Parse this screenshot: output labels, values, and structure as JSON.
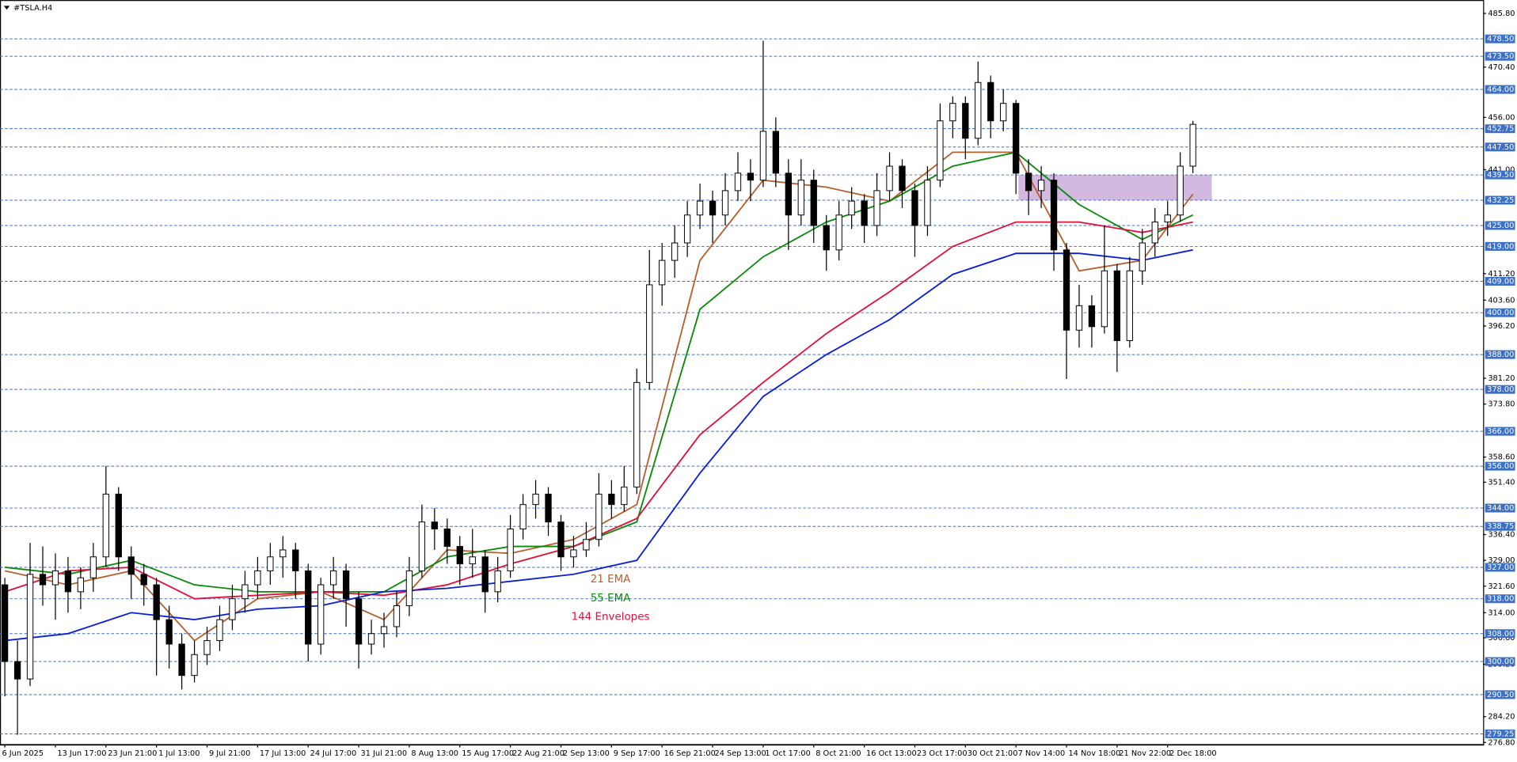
{
  "chart_data": {
    "type": "candlestick",
    "title": "#TSLA.H4",
    "categories": [
      "6 Jun 2025",
      null,
      null,
      null,
      "13 Jun 17:00",
      null,
      null,
      null,
      "23 Jun 21:00",
      null,
      null,
      null,
      "1 Jul 13:00",
      null,
      null,
      null,
      "9 Jul 21:00",
      null,
      null,
      null,
      "17 Jul 13:00",
      null,
      null,
      null,
      "24 Jul 17:00",
      null,
      null,
      null,
      "31 Jul 21:00",
      null,
      null,
      null,
      "8 Aug 13:00",
      null,
      null,
      null,
      "15 Aug 17:00",
      null,
      null,
      null,
      "22 Aug 21:00",
      null,
      null,
      null,
      "2 Sep 13:00",
      null,
      null,
      null,
      "9 Sep 17:00",
      null,
      null,
      null,
      "16 Sep 21:00",
      null,
      null,
      null,
      "24 Sep 13:00",
      null,
      null,
      null,
      "1 Oct 17:00",
      null,
      null,
      null,
      "8 Oct 21:00",
      null,
      null,
      null,
      "16 Oct 13:00",
      null,
      null,
      null,
      "23 Oct 17:00",
      null,
      null,
      null,
      "30 Oct 21:00",
      null,
      null,
      null,
      "7 Nov 14:00",
      null,
      null,
      null,
      "14 Nov 18:00",
      null,
      null,
      null,
      "21 Nov 22:00",
      null,
      null,
      null,
      "2 Dec 18:00",
      null,
      null
    ],
    "ohlc": [
      [
        322,
        324,
        290,
        300
      ],
      [
        300,
        306,
        279,
        295
      ],
      [
        295,
        334,
        293,
        325
      ],
      [
        325,
        333,
        316,
        322
      ],
      [
        322,
        331,
        312,
        326
      ],
      [
        326,
        330,
        314,
        320
      ],
      [
        320,
        327,
        315,
        324
      ],
      [
        324,
        334,
        320,
        330
      ],
      [
        330,
        356,
        327,
        348
      ],
      [
        348,
        350,
        326,
        330
      ],
      [
        330,
        333,
        318,
        325
      ],
      [
        325,
        328,
        316,
        322
      ],
      [
        322,
        324,
        296,
        312
      ],
      [
        312,
        316,
        298,
        305
      ],
      [
        305,
        308,
        292,
        296
      ],
      [
        296,
        306,
        294,
        302
      ],
      [
        302,
        310,
        299,
        306
      ],
      [
        306,
        316,
        303,
        312
      ],
      [
        312,
        322,
        309,
        318
      ],
      [
        318,
        326,
        314,
        322
      ],
      [
        322,
        330,
        318,
        326
      ],
      [
        326,
        334,
        322,
        330
      ],
      [
        330,
        336,
        324,
        332
      ],
      [
        332,
        334,
        318,
        326
      ],
      [
        326,
        328,
        300,
        305
      ],
      [
        305,
        324,
        302,
        322
      ],
      [
        322,
        330,
        318,
        326
      ],
      [
        326,
        328,
        310,
        318
      ],
      [
        318,
        320,
        298,
        305
      ],
      [
        305,
        312,
        302,
        308
      ],
      [
        308,
        314,
        304,
        310
      ],
      [
        310,
        320,
        307,
        316
      ],
      [
        316,
        330,
        313,
        326
      ],
      [
        326,
        345,
        324,
        340
      ],
      [
        340,
        344,
        332,
        338
      ],
      [
        338,
        341,
        328,
        333
      ],
      [
        333,
        336,
        322,
        328
      ],
      [
        328,
        338,
        324,
        330
      ],
      [
        330,
        332,
        314,
        320
      ],
      [
        320,
        330,
        317,
        326
      ],
      [
        326,
        342,
        324,
        338
      ],
      [
        338,
        348,
        335,
        345
      ],
      [
        345,
        352,
        341,
        348
      ],
      [
        348,
        350,
        336,
        340
      ],
      [
        340,
        342,
        326,
        330
      ],
      [
        330,
        336,
        327,
        332
      ],
      [
        332,
        340,
        330,
        335
      ],
      [
        335,
        354,
        333,
        348
      ],
      [
        348,
        352,
        341,
        345
      ],
      [
        345,
        356,
        343,
        350
      ],
      [
        350,
        384,
        348,
        380
      ],
      [
        380,
        418,
        378,
        408
      ],
      [
        408,
        420,
        402,
        415
      ],
      [
        415,
        425,
        410,
        420
      ],
      [
        420,
        432,
        416,
        428
      ],
      [
        428,
        437,
        424,
        432
      ],
      [
        432,
        435,
        420,
        428
      ],
      [
        428,
        440,
        425,
        435
      ],
      [
        435,
        446,
        432,
        440
      ],
      [
        440,
        444,
        432,
        438
      ],
      [
        438,
        478,
        436,
        452
      ],
      [
        452,
        456,
        436,
        440
      ],
      [
        440,
        444,
        418,
        428
      ],
      [
        428,
        444,
        425,
        438
      ],
      [
        438,
        441,
        420,
        425
      ],
      [
        425,
        428,
        412,
        418
      ],
      [
        418,
        432,
        415,
        428
      ],
      [
        428,
        436,
        424,
        432
      ],
      [
        432,
        434,
        420,
        425
      ],
      [
        425,
        440,
        422,
        435
      ],
      [
        435,
        446,
        432,
        442
      ],
      [
        442,
        444,
        430,
        435
      ],
      [
        435,
        437,
        416,
        425
      ],
      [
        425,
        442,
        422,
        438
      ],
      [
        438,
        460,
        436,
        455
      ],
      [
        455,
        462,
        450,
        460
      ],
      [
        460,
        462,
        444,
        450
      ],
      [
        450,
        472,
        448,
        466
      ],
      [
        466,
        468,
        450,
        455
      ],
      [
        455,
        464,
        452,
        460
      ],
      [
        460,
        461,
        434,
        440
      ],
      [
        440,
        444,
        428,
        435
      ],
      [
        435,
        442,
        430,
        438
      ],
      [
        438,
        440,
        412,
        418
      ],
      [
        418,
        420,
        381,
        395
      ],
      [
        395,
        408,
        390,
        402
      ],
      [
        402,
        405,
        390,
        396
      ],
      [
        396,
        425,
        394,
        412
      ],
      [
        412,
        414,
        383,
        392
      ],
      [
        392,
        416,
        390,
        412
      ],
      [
        412,
        424,
        408,
        420
      ],
      [
        420,
        430,
        416,
        426
      ],
      [
        426,
        432,
        422,
        428
      ],
      [
        428,
        446,
        426,
        442
      ],
      [
        442,
        455,
        440,
        454
      ]
    ],
    "series": [
      {
        "name": "21 EMA",
        "color": "#b5602f",
        "x": [
          0,
          5,
          10,
          15,
          20,
          25,
          30,
          35,
          40,
          45,
          50,
          55,
          60,
          65,
          70,
          75,
          80,
          85,
          90,
          94
        ],
        "values": [
          326,
          322,
          326,
          306,
          318,
          320,
          312,
          332,
          331,
          335,
          345,
          415,
          438,
          436,
          432,
          446,
          446,
          412,
          415,
          434
        ]
      },
      {
        "name": "55 EMA",
        "color": "#0a8a0a",
        "x": [
          0,
          5,
          10,
          15,
          20,
          25,
          30,
          35,
          40,
          45,
          50,
          55,
          60,
          65,
          70,
          75,
          80,
          85,
          90,
          94
        ],
        "values": [
          327,
          325,
          329,
          322,
          320,
          320,
          320,
          330,
          333,
          333,
          340,
          401,
          416,
          426,
          432,
          442,
          446,
          431,
          421,
          428
        ]
      },
      {
        "name": "144 Envelopes",
        "color": "#e0103a",
        "x": [
          0,
          5,
          10,
          15,
          20,
          25,
          30,
          35,
          40,
          45,
          50,
          55,
          60,
          65,
          70,
          75,
          80,
          85,
          90,
          94
        ],
        "values": [
          320,
          326,
          327,
          318,
          319,
          320,
          319,
          322,
          328,
          333,
          341,
          365,
          380,
          394,
          406,
          419,
          426,
          426,
          423,
          426
        ]
      },
      {
        "color": "#0a1fd6",
        "x": [
          0,
          5,
          10,
          15,
          20,
          25,
          30,
          35,
          40,
          45,
          50,
          55,
          60,
          65,
          70,
          75,
          80,
          85,
          90,
          94
        ],
        "values": [
          306,
          308,
          314,
          312,
          315,
          316,
          320,
          321,
          323,
          325,
          329,
          354,
          376,
          388,
          398,
          411,
          417,
          417,
          415,
          418
        ]
      }
    ],
    "zone": {
      "color": "#c8a8d8",
      "from": 439.5,
      "to": 432.25,
      "start": 80.2,
      "end": 95.5
    },
    "ylim": [
      276.2,
      488.8
    ],
    "yticks": [
      {
        "value": 485.8,
        "label": "485.80"
      },
      {
        "value": 470.4,
        "label": "470.40"
      },
      {
        "value": 456,
        "label": "456.00"
      },
      {
        "value": 441,
        "label": "441.00"
      },
      {
        "value": 411.2,
        "label": "411.20"
      },
      {
        "value": 403.6,
        "label": "403.60"
      },
      {
        "value": 396.2,
        "label": "396.20"
      },
      {
        "value": 381.2,
        "label": "381.20"
      },
      {
        "value": 373.8,
        "label": "373.80"
      },
      {
        "value": 358.6,
        "label": "358.60"
      },
      {
        "value": 351.4,
        "label": "351.40"
      },
      {
        "value": 336.4,
        "label": "336.40"
      },
      {
        "value": 329,
        "label": "329.00"
      },
      {
        "value": 321.6,
        "label": "321.60"
      },
      {
        "value": 314,
        "label": "314.00"
      },
      {
        "value": 306.8,
        "label": "306.80"
      },
      {
        "value": 299.2,
        "label": "299.20"
      },
      {
        "value": 284.2,
        "label": "284.20"
      },
      {
        "value": 276.8,
        "label": "276.80"
      }
    ],
    "levels": [
      {
        "value": 478.5,
        "label": "478.50"
      },
      {
        "value": 473.5,
        "label": "473.50"
      },
      {
        "value": 464,
        "label": "464.00"
      },
      {
        "value": 452.75,
        "label": "452.75"
      },
      {
        "value": 447.5,
        "label": "447.50"
      },
      {
        "value": 439.5,
        "label": "439.50"
      },
      {
        "value": 432.25,
        "label": "432.25"
      },
      {
        "value": 425,
        "label": "425.00"
      },
      {
        "value": 419,
        "label": "419.00"
      },
      {
        "value": 409,
        "label": "409.00"
      },
      {
        "value": 400,
        "label": "400.00"
      },
      {
        "value": 388,
        "label": "388.00"
      },
      {
        "value": 378,
        "label": "378.00"
      },
      {
        "value": 366,
        "label": "366.00"
      },
      {
        "value": 356,
        "label": "356.00"
      },
      {
        "value": 344,
        "label": "344.00"
      },
      {
        "value": 338.75,
        "label": "338.75"
      },
      {
        "value": 327,
        "label": "327.00"
      },
      {
        "value": 318,
        "label": "318.00"
      },
      {
        "value": 308,
        "label": "308.00"
      },
      {
        "value": 300,
        "label": "300.00"
      },
      {
        "value": 290.5,
        "label": "290.50"
      },
      {
        "value": 279.25,
        "label": "279.25"
      }
    ],
    "level_color": "#3d6fc6"
  }
}
